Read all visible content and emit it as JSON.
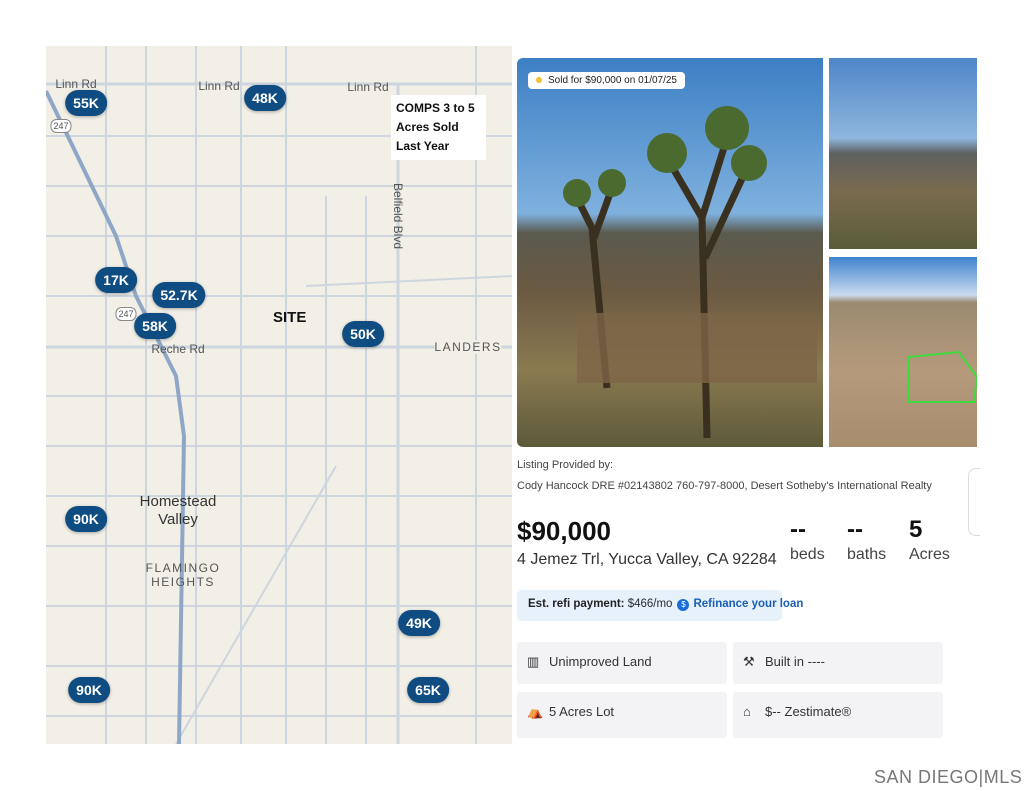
{
  "map": {
    "note": "COMPS 3 to 5 Acres Sold Last Year",
    "site_label": "SITE",
    "roads": [
      "Linn Rd",
      "Linn Rd",
      "Linn Rd",
      "Belfield Blvd",
      "Reche Rd"
    ],
    "highway_shield": "247",
    "places": [
      "LANDERS",
      "Homestead Valley",
      "FLAMINGO HEIGHTS"
    ],
    "markers": [
      "55K",
      "48K",
      "17K",
      "52.7K",
      "58K",
      "50K",
      "90K",
      "49K",
      "90K",
      "65K"
    ],
    "marker_color": "#0f4c81"
  },
  "listing": {
    "sold_badge": "Sold for $90,000 on 01/07/25",
    "provided_by": "Listing Provided by:",
    "agent": "Cody Hancock DRE #02143802 760-797-8000, Desert Sotheby's International Realty",
    "price": "$90,000",
    "address": "4 Jemez Trl, Yucca Valley, CA 92284",
    "beds_value": "--",
    "beds_label": "beds",
    "baths_value": "--",
    "baths_label": "baths",
    "acres_value": "5",
    "acres_label": "Acres",
    "refi_label": "Est. refi payment:",
    "refi_value": "$466/mo",
    "refi_link": "Refinance your loan",
    "facts": [
      "Unimproved Land",
      "Built in ----",
      "5 Acres Lot",
      "$-- Zestimate®"
    ]
  },
  "footer_logo": "SAN DIEGO|MLS"
}
